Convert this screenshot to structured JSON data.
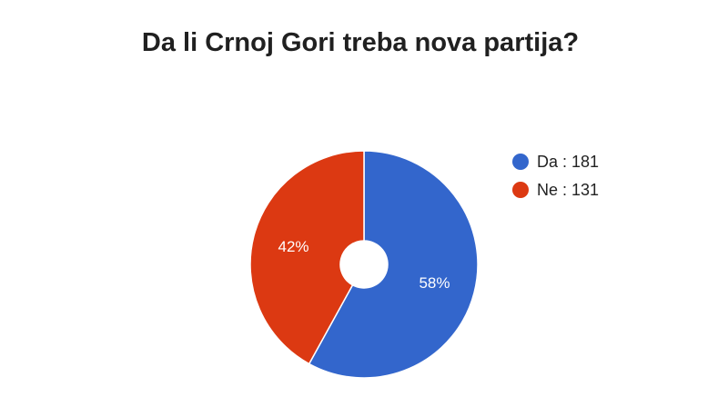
{
  "chart_data": {
    "type": "pie",
    "title": "Da li Crnoj Gori treba nova partija?",
    "categories": [
      "Da",
      "Ne"
    ],
    "values": [
      181,
      131
    ],
    "percent_labels": [
      "58%",
      "42%"
    ],
    "legend_labels": [
      "Da : 181",
      "Ne : 131"
    ],
    "colors": [
      "#3366cc",
      "#dc3912"
    ],
    "donut": true,
    "legend_position": "right"
  }
}
